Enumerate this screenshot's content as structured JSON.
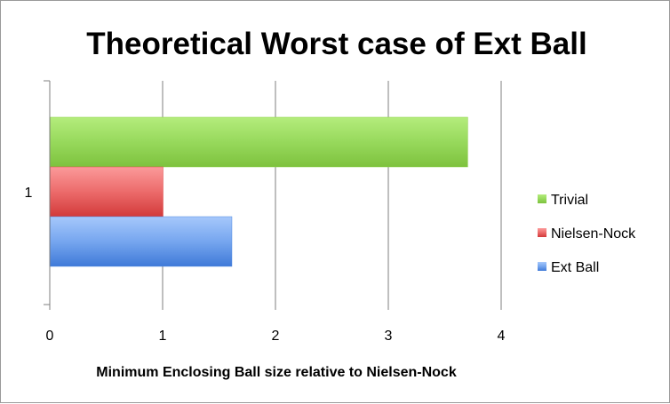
{
  "chart_data": {
    "type": "bar",
    "orientation": "horizontal",
    "title": "Theoretical Worst case of Ext Ball",
    "xlabel": "Minimum Enclosing Ball size relative to Nielsen-Nock",
    "ylabel": "",
    "categories": [
      "1"
    ],
    "xlim": [
      0,
      4
    ],
    "xticks": [
      "0",
      "1",
      "2",
      "3",
      "4"
    ],
    "grid": true,
    "legend_position": "right",
    "series": [
      {
        "name": "Trivial",
        "values": [
          3.7
        ],
        "color": "#8fd14f"
      },
      {
        "name": "Nielsen-Nock",
        "values": [
          1.0
        ],
        "color": "#e04848"
      },
      {
        "name": "Ext Ball",
        "values": [
          1.61
        ],
        "color": "#4f88e0"
      }
    ]
  }
}
